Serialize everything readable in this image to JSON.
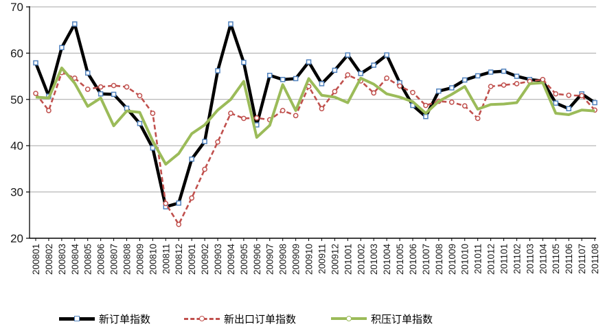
{
  "chart_data": {
    "type": "line",
    "title": "",
    "xlabel": "",
    "ylabel": "",
    "ylim": [
      20,
      70
    ],
    "yticks": [
      20,
      30,
      40,
      50,
      60,
      70
    ],
    "grid": true,
    "legend_position": "bottom",
    "gridline_color": "#A6A6A6",
    "axis_color": "#000000",
    "tick_label_color": "#1a1a1a",
    "categories": [
      "200801",
      "200802",
      "200803",
      "200804",
      "200805",
      "200806",
      "200807",
      "200808",
      "200809",
      "200810",
      "200811",
      "200812",
      "200901",
      "200902",
      "200903",
      "200904",
      "200905",
      "200906",
      "200907",
      "200908",
      "200909",
      "200910",
      "200911",
      "200912",
      "201001",
      "201002",
      "201003",
      "201004",
      "201005",
      "201006",
      "201007",
      "201008",
      "201009",
      "201010",
      "201011",
      "201012",
      "201101",
      "201102",
      "201103",
      "201104",
      "201105",
      "201106",
      "201107",
      "201108"
    ],
    "series": [
      {
        "name": "新订单指数",
        "color": "#000000",
        "line_style": "solid",
        "line_width": 4.5,
        "marker": "square",
        "marker_stroke": "#4F81BD",
        "values": [
          57.9,
          50.7,
          61.2,
          66.3,
          55.7,
          51.2,
          51.1,
          48.1,
          44.8,
          39.5,
          26.8,
          27.6,
          37.1,
          40.9,
          56.2,
          66.3,
          58.0,
          44.5,
          55.2,
          54.3,
          54.5,
          58.1,
          53.4,
          56.3,
          59.6,
          55.6,
          57.4,
          59.6,
          53.6,
          48.7,
          46.3,
          51.8,
          52.5,
          54.2,
          55.1,
          55.9,
          56.1,
          55.0,
          54.3,
          54.0,
          49.2,
          48.0,
          51.2,
          49.3
        ]
      },
      {
        "name": "新出口订单指数",
        "color": "#C0504D",
        "line_style": "dashed",
        "line_width": 2.6,
        "marker": "circle",
        "marker_stroke": "#C0504D",
        "values": [
          51.3,
          47.6,
          55.8,
          54.6,
          52.2,
          52.7,
          53.0,
          52.7,
          50.8,
          47.0,
          27.5,
          23.0,
          28.7,
          34.9,
          40.8,
          47.0,
          45.9,
          46.0,
          45.6,
          47.6,
          46.5,
          52.8,
          48.0,
          51.7,
          55.3,
          54.0,
          51.4,
          54.6,
          52.9,
          51.5,
          48.7,
          49.6,
          49.4,
          48.6,
          45.9,
          52.8,
          53.1,
          53.4,
          53.9,
          54.3,
          51.2,
          50.9,
          50.8,
          47.7
        ]
      },
      {
        "name": "积压订单指数",
        "color": "#9BBB59",
        "line_style": "solid",
        "line_width": 4,
        "marker": "none",
        "marker_stroke": "#9BBB59",
        "values": [
          50.5,
          50.3,
          56.8,
          53.5,
          48.5,
          50.3,
          44.3,
          47.5,
          47.2,
          41.0,
          36.0,
          38.3,
          42.6,
          44.5,
          47.7,
          50.0,
          53.9,
          41.8,
          44.4,
          53.2,
          47.6,
          54.5,
          50.9,
          50.5,
          49.3,
          54.6,
          53.3,
          51.2,
          50.5,
          49.5,
          47.0,
          49.6,
          51.1,
          52.8,
          47.9,
          48.9,
          49.0,
          49.3,
          53.4,
          53.6,
          47.0,
          46.7,
          47.7,
          47.5
        ]
      }
    ]
  }
}
